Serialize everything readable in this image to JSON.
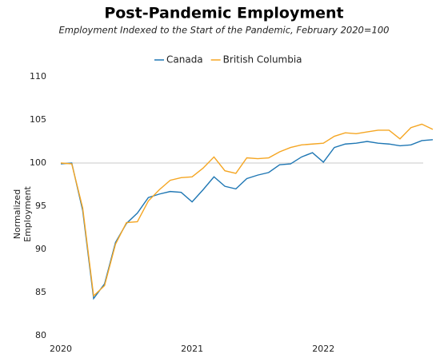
{
  "chart_data": {
    "type": "line",
    "title": "Post-Pandemic Employment",
    "subtitle": "Employment Indexed to the Start of the Pandemic, February 2020=100",
    "y_label": "Normalized Employment",
    "x": [
      2020,
      2020.0833,
      2020.1667,
      2020.25,
      2020.3333,
      2020.4167,
      2020.5,
      2020.5833,
      2020.6667,
      2020.75,
      2020.8333,
      2020.9167,
      2021,
      2021.0833,
      2021.1667,
      2021.25,
      2021.3333,
      2021.4167,
      2021.5,
      2021.5833,
      2021.6667,
      2021.75,
      2021.8333,
      2021.9167,
      2022,
      2022.0833,
      2022.1667,
      2022.25,
      2022.3333,
      2022.4167,
      2022.5,
      2022.5833,
      2022.6667,
      2022.75,
      2022.8333
    ],
    "series": [
      {
        "name": "Canada",
        "color": "#1f77b4",
        "values": [
          99.9,
          100,
          94.5,
          84.3,
          86,
          90.8,
          93,
          94.2,
          96,
          96.4,
          96.7,
          96.6,
          95.5,
          96.9,
          98.4,
          97.3,
          97,
          98.2,
          98.6,
          98.9,
          99.8,
          99.9,
          100.7,
          101.2,
          100.1,
          101.8,
          102.2,
          102.3,
          102.5,
          102.3,
          102.2,
          102,
          102.1,
          102.6,
          102.7
        ]
      },
      {
        "name": "British Columbia",
        "color": "#f5a623",
        "values": [
          100,
          99.9,
          94.8,
          84.6,
          85.8,
          90.6,
          93.1,
          93.2,
          95.6,
          96.9,
          98,
          98.3,
          98.4,
          99.4,
          100.7,
          99.1,
          98.8,
          100.6,
          100.5,
          100.6,
          101.3,
          101.8,
          102.1,
          102.2,
          102.3,
          103.1,
          103.5,
          103.4,
          103.6,
          103.8,
          103.8,
          102.8,
          104.1,
          104.5,
          103.9
        ]
      }
    ],
    "xlim": [
      2020,
      2022.8333
    ],
    "xticks": [
      2020,
      2021,
      2022
    ],
    "ylim": [
      80,
      110
    ],
    "yticks": [
      80,
      85,
      90,
      95,
      100,
      105,
      110
    ],
    "reference_line": 100,
    "legend": "top"
  }
}
